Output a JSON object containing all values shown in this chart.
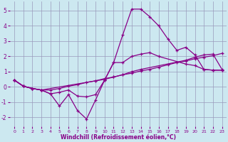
{
  "xlabel": "Windchill (Refroidissement éolien,°C)",
  "background_color": "#cce8f0",
  "grid_color": "#9999bb",
  "line_color": "#880088",
  "xlim": [
    -0.5,
    23.5
  ],
  "ylim": [
    -2.6,
    5.6
  ],
  "yticks": [
    -2,
    -1,
    0,
    1,
    2,
    3,
    4,
    5
  ],
  "xticks": [
    0,
    1,
    2,
    3,
    4,
    5,
    6,
    7,
    8,
    9,
    10,
    11,
    12,
    13,
    14,
    15,
    16,
    17,
    18,
    19,
    20,
    21,
    22,
    23
  ],
  "line1_x": [
    0,
    1,
    2,
    3,
    4,
    5,
    6,
    7,
    8,
    9,
    10,
    11,
    12,
    13,
    14,
    15,
    16,
    17,
    18,
    19,
    20,
    21,
    22,
    23
  ],
  "line1_y": [
    0.45,
    0.05,
    -0.1,
    -0.2,
    -0.45,
    -1.25,
    -0.5,
    -1.55,
    -2.1,
    -0.85,
    0.45,
    1.6,
    3.4,
    5.1,
    5.1,
    4.6,
    4.0,
    3.15,
    2.4,
    2.6,
    2.1,
    1.15,
    1.1,
    1.1
  ],
  "line2_x": [
    0,
    1,
    2,
    3,
    9,
    10,
    11,
    12,
    13,
    14,
    19,
    20,
    21,
    22,
    23
  ],
  "line2_y": [
    0.45,
    0.05,
    -0.1,
    -0.2,
    0.4,
    0.5,
    0.65,
    0.8,
    1.0,
    1.15,
    1.75,
    1.95,
    2.1,
    2.15,
    1.15
  ],
  "line3_x": [
    0,
    1,
    2,
    3,
    4,
    5,
    6,
    7,
    8,
    9,
    10,
    11,
    12,
    13,
    14,
    15,
    16,
    19,
    20,
    21,
    22,
    23
  ],
  "line3_y": [
    0.45,
    0.05,
    -0.1,
    -0.2,
    -0.45,
    -0.35,
    -0.2,
    -0.6,
    -0.65,
    -0.5,
    0.45,
    1.6,
    1.6,
    2.0,
    2.15,
    2.25,
    2.0,
    1.5,
    1.4,
    1.15,
    1.1,
    1.1
  ],
  "line4_x": [
    0,
    1,
    2,
    3,
    4,
    5,
    6,
    7,
    8,
    9,
    10,
    11,
    12,
    13,
    14,
    15,
    16,
    17,
    18,
    19,
    20,
    21,
    22,
    23
  ],
  "line4_y": [
    0.45,
    0.05,
    -0.1,
    -0.2,
    -0.2,
    -0.1,
    0.05,
    0.15,
    0.3,
    0.4,
    0.55,
    0.65,
    0.8,
    0.9,
    1.05,
    1.15,
    1.3,
    1.45,
    1.6,
    1.7,
    1.85,
    1.95,
    2.05,
    2.2
  ]
}
